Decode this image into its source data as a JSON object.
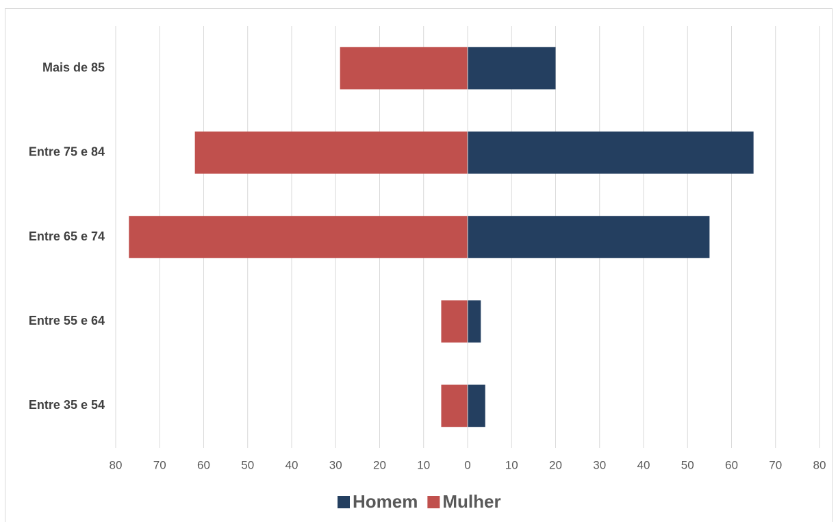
{
  "chart_data": {
    "type": "bar",
    "orientation": "horizontal",
    "stacked": true,
    "categories": [
      "Mais de 85",
      "Entre 75 e 84",
      "Entre 65 e 74",
      "Entre 55 e 64",
      "Entre 35 e 54"
    ],
    "series": [
      {
        "name": "Homem",
        "color": "#243f60",
        "values": [
          20,
          65,
          55,
          3,
          4
        ]
      },
      {
        "name": "Mulher",
        "color": "#c0504d",
        "values": [
          -29,
          -62,
          -77,
          -6,
          -6
        ]
      }
    ],
    "xlim": [
      -80,
      80
    ],
    "xticks": [
      {
        "value": -80,
        "label": "80"
      },
      {
        "value": -70,
        "label": "70"
      },
      {
        "value": -60,
        "label": "60"
      },
      {
        "value": -50,
        "label": "50"
      },
      {
        "value": -40,
        "label": "40"
      },
      {
        "value": -30,
        "label": "30"
      },
      {
        "value": -20,
        "label": "20"
      },
      {
        "value": -10,
        "label": "10"
      },
      0,
      10,
      20,
      30,
      40,
      50,
      60,
      70,
      80
    ],
    "grid": true,
    "legend": "bottom"
  }
}
